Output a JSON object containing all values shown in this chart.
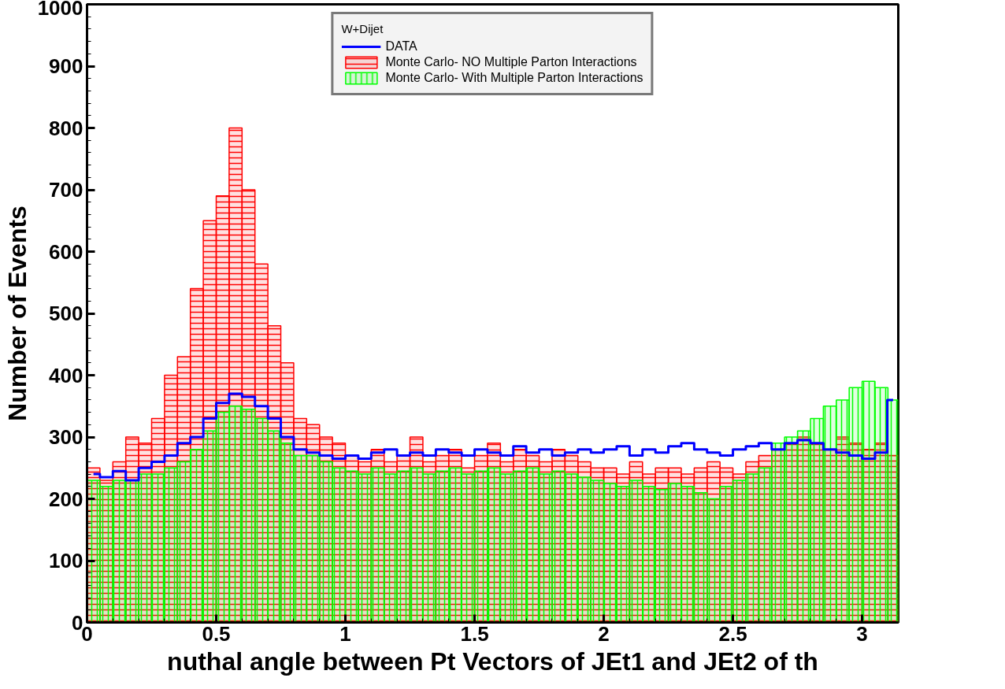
{
  "chart_data": {
    "type": "histogram",
    "xlabel": "nuthal angle between Pt Vectors of JEt1 and JEt2 of th",
    "ylabel": "Number of Events",
    "legend_title": "W+Dijet",
    "bins": [
      0,
      0.05,
      0.1,
      0.15,
      0.2,
      0.25,
      0.3,
      0.35,
      0.4,
      0.45,
      0.5,
      0.55,
      0.6,
      0.65,
      0.7,
      0.75,
      0.8,
      0.85,
      0.9,
      0.95,
      1.0,
      1.05,
      1.1,
      1.15,
      1.2,
      1.25,
      1.3,
      1.35,
      1.4,
      1.45,
      1.5,
      1.55,
      1.6,
      1.65,
      1.7,
      1.75,
      1.8,
      1.85,
      1.9,
      1.95,
      2.0,
      2.05,
      2.1,
      2.15,
      2.2,
      2.25,
      2.3,
      2.35,
      2.4,
      2.45,
      2.5,
      2.55,
      2.6,
      2.65,
      2.7,
      2.75,
      2.8,
      2.85,
      2.9,
      2.95,
      3.0,
      3.05,
      3.1,
      3.14
    ],
    "series": [
      {
        "name": "Monte Carlo- NO Multiple Parton Interactions",
        "type": "histogram",
        "color": "#ff0000",
        "values": [
          250,
          230,
          260,
          300,
          290,
          330,
          400,
          430,
          540,
          650,
          690,
          800,
          700,
          580,
          480,
          420,
          330,
          320,
          300,
          290,
          270,
          260,
          280,
          260,
          270,
          300,
          260,
          270,
          280,
          250,
          270,
          290,
          260,
          280,
          270,
          260,
          280,
          270,
          260,
          250,
          250,
          240,
          260,
          240,
          250,
          250,
          240,
          250,
          260,
          250,
          240,
          260,
          270,
          280,
          290,
          300,
          290,
          280,
          300,
          290,
          280,
          290,
          270
        ]
      },
      {
        "name": "Monte Carlo- With Multiple Parton Interactions",
        "type": "histogram",
        "color": "#00ff00",
        "values": [
          230,
          220,
          230,
          230,
          240,
          240,
          250,
          260,
          280,
          310,
          340,
          350,
          345,
          330,
          310,
          290,
          270,
          270,
          260,
          250,
          245,
          240,
          250,
          240,
          245,
          250,
          240,
          245,
          250,
          240,
          245,
          250,
          240,
          245,
          250,
          240,
          245,
          240,
          235,
          230,
          225,
          220,
          230,
          220,
          215,
          225,
          220,
          210,
          200,
          220,
          230,
          240,
          250,
          290,
          300,
          310,
          330,
          350,
          360,
          380,
          390,
          380,
          360
        ]
      },
      {
        "name": "DATA",
        "type": "step",
        "color": "#0000ff",
        "x": [
          0.025,
          0.075,
          0.125,
          0.175,
          0.225,
          0.275,
          0.325,
          0.375,
          0.425,
          0.475,
          0.525,
          0.575,
          0.625,
          0.675,
          0.725,
          0.775,
          0.825,
          0.875,
          0.925,
          0.975,
          1.025,
          1.075,
          1.125,
          1.175,
          1.225,
          1.275,
          1.325,
          1.375,
          1.425,
          1.475,
          1.525,
          1.575,
          1.625,
          1.675,
          1.725,
          1.775,
          1.825,
          1.875,
          1.925,
          1.975,
          2.025,
          2.075,
          2.125,
          2.175,
          2.225,
          2.275,
          2.325,
          2.375,
          2.425,
          2.475,
          2.525,
          2.575,
          2.625,
          2.675,
          2.725,
          2.775,
          2.825,
          2.875,
          2.925,
          2.975,
          3.025,
          3.075,
          3.12
        ],
        "values": [
          240,
          235,
          245,
          230,
          250,
          260,
          270,
          290,
          300,
          330,
          355,
          370,
          365,
          350,
          330,
          300,
          280,
          275,
          270,
          265,
          270,
          265,
          275,
          280,
          270,
          275,
          270,
          280,
          275,
          270,
          280,
          275,
          270,
          285,
          275,
          280,
          270,
          275,
          280,
          275,
          280,
          285,
          270,
          280,
          275,
          285,
          290,
          280,
          275,
          270,
          280,
          285,
          290,
          280,
          290,
          295,
          290,
          280,
          275,
          270,
          265,
          275,
          360
        ]
      }
    ],
    "xlim": [
      0,
      3.14
    ],
    "ylim": [
      0,
      1000
    ],
    "xticks": [
      0,
      0.5,
      1,
      1.5,
      2,
      2.5,
      3
    ],
    "yticks": [
      0,
      100,
      200,
      300,
      400,
      500,
      600,
      700,
      800,
      900,
      1000
    ],
    "grid": false,
    "legend": "top"
  }
}
